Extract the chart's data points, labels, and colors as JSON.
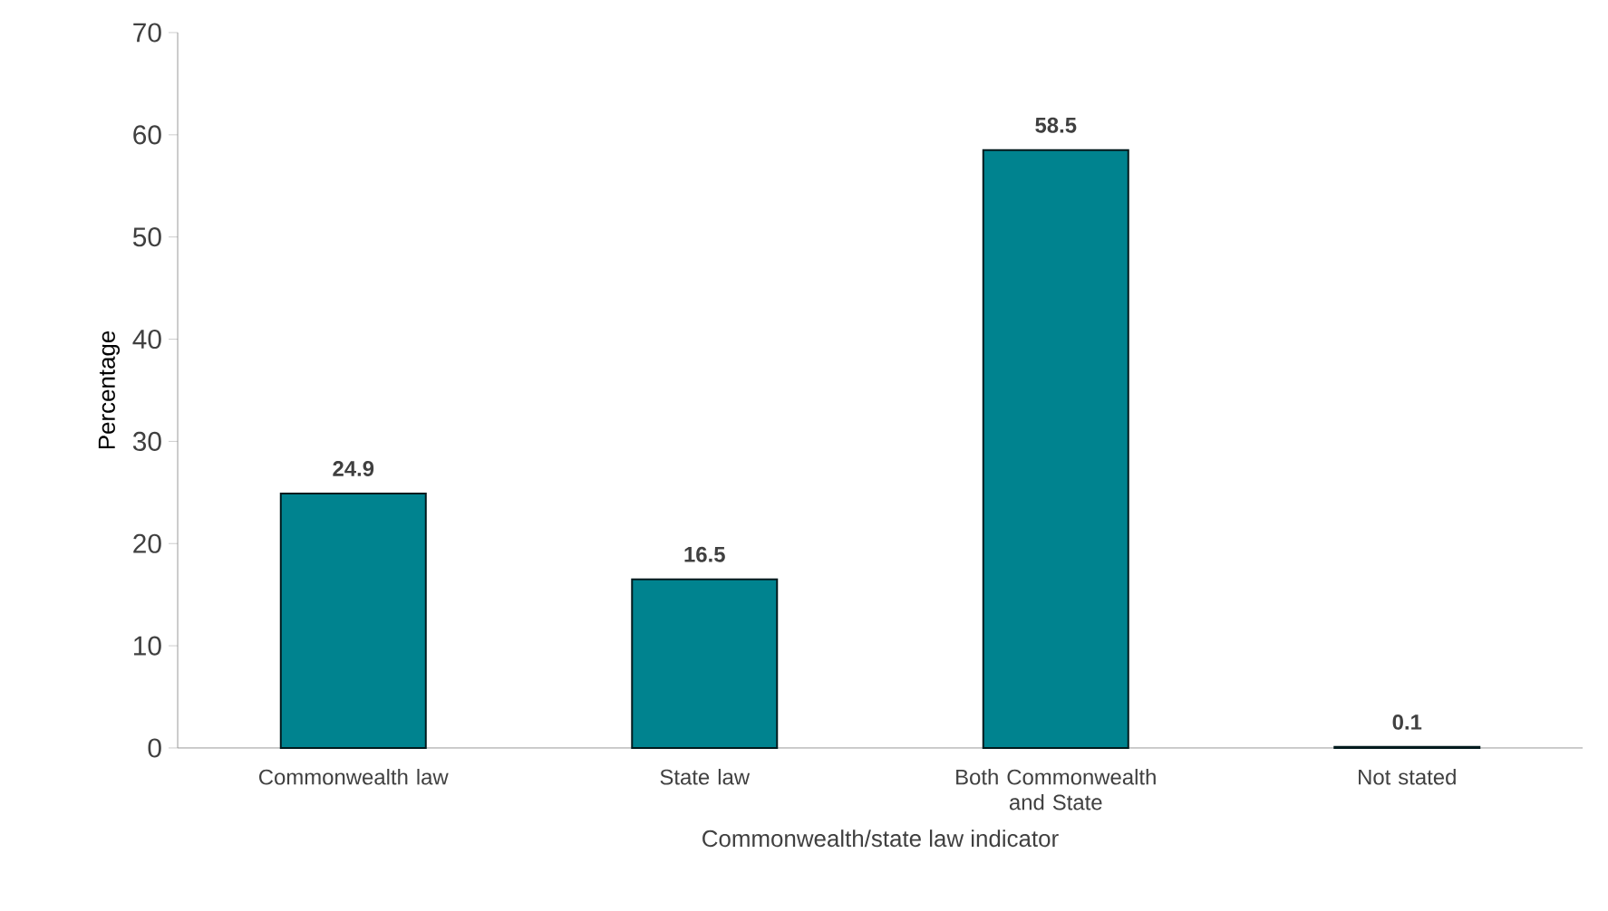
{
  "chart_data": {
    "type": "bar",
    "xlabel": "Commonwealth/state law indicator",
    "ylabel": "Percentage",
    "categories": [
      "Commonwealth law",
      "State law",
      "Both Commonwealth and State",
      "Not stated"
    ],
    "values": [
      24.9,
      16.5,
      58.5,
      0.1
    ],
    "value_labels": [
      "24.9",
      "16.5",
      "58.5",
      "0.1"
    ],
    "color": "#00838f",
    "ylim": [
      0,
      70
    ],
    "yticks": [
      0,
      10,
      20,
      30,
      40,
      50,
      60,
      70
    ]
  }
}
